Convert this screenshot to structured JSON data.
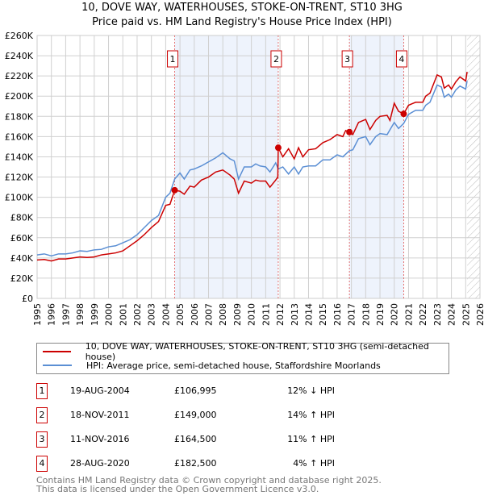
{
  "title": "10, DOVE WAY, WATERHOUSES, STOKE-ON-TRENT, ST10 3HG",
  "subtitle": "Price paid vs. HM Land Registry's House Price Index (HPI)",
  "chart_data": {
    "type": "line",
    "xlim": [
      1995,
      2026
    ],
    "ylim": [
      0,
      260000
    ],
    "x_ticks": [
      "1995",
      "1996",
      "1997",
      "1998",
      "1999",
      "2000",
      "2001",
      "2002",
      "2003",
      "2004",
      "2005",
      "2006",
      "2007",
      "2008",
      "2009",
      "2010",
      "2011",
      "2012",
      "2013",
      "2014",
      "2015",
      "2016",
      "2017",
      "2018",
      "2019",
      "2020",
      "2021",
      "2022",
      "2023",
      "2024",
      "2025",
      "2026"
    ],
    "y_ticks": [
      {
        "v": 0,
        "label": "£0"
      },
      {
        "v": 20000,
        "label": "£20K"
      },
      {
        "v": 40000,
        "label": "£40K"
      },
      {
        "v": 60000,
        "label": "£60K"
      },
      {
        "v": 80000,
        "label": "£80K"
      },
      {
        "v": 100000,
        "label": "£100K"
      },
      {
        "v": 120000,
        "label": "£120K"
      },
      {
        "v": 140000,
        "label": "£140K"
      },
      {
        "v": 160000,
        "label": "£160K"
      },
      {
        "v": 180000,
        "label": "£180K"
      },
      {
        "v": 200000,
        "label": "£200K"
      },
      {
        "v": 220000,
        "label": "£220K"
      },
      {
        "v": 240000,
        "label": "£240K"
      },
      {
        "v": 260000,
        "label": "£260K"
      }
    ],
    "grid": true,
    "shaded_ranges": [
      [
        2004.63,
        2011.88
      ],
      [
        2016.86,
        2020.66
      ]
    ],
    "forecast_hatch_from": 2025.1,
    "series": [
      {
        "name": "10, DOVE WAY, WATERHOUSES, STOKE-ON-TRENT, ST10 3HG (semi-detached house)",
        "color": "#cc0000",
        "points": [
          [
            1995,
            38000
          ],
          [
            1995.5,
            38500
          ],
          [
            1996,
            37000
          ],
          [
            1996.5,
            39000
          ],
          [
            1997,
            39000
          ],
          [
            1997.5,
            40000
          ],
          [
            1998,
            41000
          ],
          [
            1998.5,
            40500
          ],
          [
            1999,
            41000
          ],
          [
            1999.5,
            43000
          ],
          [
            2000,
            44000
          ],
          [
            2000.5,
            45000
          ],
          [
            2001,
            47000
          ],
          [
            2001.5,
            52000
          ],
          [
            2002,
            57000
          ],
          [
            2002.5,
            63000
          ],
          [
            2003,
            70000
          ],
          [
            2003.5,
            76000
          ],
          [
            2004,
            92000
          ],
          [
            2004.3,
            93000
          ],
          [
            2004.63,
            106995
          ],
          [
            2005,
            106000
          ],
          [
            2005.3,
            103000
          ],
          [
            2005.7,
            111000
          ],
          [
            2006,
            110000
          ],
          [
            2006.5,
            117000
          ],
          [
            2007,
            120000
          ],
          [
            2007.5,
            125000
          ],
          [
            2008,
            127000
          ],
          [
            2008.5,
            122000
          ],
          [
            2008.8,
            118000
          ],
          [
            2009.1,
            104000
          ],
          [
            2009.5,
            116000
          ],
          [
            2010,
            114000
          ],
          [
            2010.3,
            117000
          ],
          [
            2010.6,
            116000
          ],
          [
            2011,
            116000
          ],
          [
            2011.3,
            110000
          ],
          [
            2011.7,
            117000
          ],
          [
            2011.85,
            120000
          ],
          [
            2011.88,
            149000
          ],
          [
            2012.2,
            140000
          ],
          [
            2012.6,
            148000
          ],
          [
            2013,
            138000
          ],
          [
            2013.3,
            149000
          ],
          [
            2013.6,
            140000
          ],
          [
            2014,
            147000
          ],
          [
            2014.5,
            148000
          ],
          [
            2015,
            154000
          ],
          [
            2015.5,
            157000
          ],
          [
            2016,
            162000
          ],
          [
            2016.4,
            160000
          ],
          [
            2016.6,
            166000
          ],
          [
            2016.86,
            164500
          ],
          [
            2017.1,
            162000
          ],
          [
            2017.5,
            174000
          ],
          [
            2018,
            177000
          ],
          [
            2018.3,
            167000
          ],
          [
            2018.7,
            176000
          ],
          [
            2019,
            180000
          ],
          [
            2019.5,
            181000
          ],
          [
            2019.7,
            176000
          ],
          [
            2020,
            193000
          ],
          [
            2020.3,
            185000
          ],
          [
            2020.66,
            182500
          ],
          [
            2021,
            191000
          ],
          [
            2021.5,
            194000
          ],
          [
            2022,
            194000
          ],
          [
            2022.2,
            200000
          ],
          [
            2022.5,
            203000
          ],
          [
            2023,
            221000
          ],
          [
            2023.3,
            219000
          ],
          [
            2023.5,
            208000
          ],
          [
            2023.8,
            211000
          ],
          [
            2024,
            207000
          ],
          [
            2024.3,
            214000
          ],
          [
            2024.6,
            219000
          ],
          [
            2025,
            215000
          ],
          [
            2025.1,
            224000
          ]
        ]
      },
      {
        "name": "HPI: Average price, semi-detached house, Staffordshire Moorlands",
        "color": "#5b8fd4",
        "points": [
          [
            1995,
            43000
          ],
          [
            1995.5,
            44000
          ],
          [
            1996,
            42000
          ],
          [
            1996.5,
            44000
          ],
          [
            1997,
            44000
          ],
          [
            1997.5,
            45000
          ],
          [
            1998,
            47000
          ],
          [
            1998.5,
            46500
          ],
          [
            1999,
            48000
          ],
          [
            1999.5,
            48500
          ],
          [
            2000,
            51000
          ],
          [
            2000.5,
            52000
          ],
          [
            2001,
            55000
          ],
          [
            2001.5,
            58000
          ],
          [
            2002,
            63000
          ],
          [
            2002.5,
            70000
          ],
          [
            2003,
            77000
          ],
          [
            2003.5,
            82000
          ],
          [
            2004,
            100000
          ],
          [
            2004.3,
            104000
          ],
          [
            2004.63,
            118000
          ],
          [
            2005,
            124000
          ],
          [
            2005.3,
            118000
          ],
          [
            2005.7,
            127000
          ],
          [
            2006,
            128000
          ],
          [
            2006.5,
            131000
          ],
          [
            2007,
            135000
          ],
          [
            2007.5,
            139000
          ],
          [
            2008,
            144000
          ],
          [
            2008.5,
            138000
          ],
          [
            2008.8,
            136000
          ],
          [
            2009.1,
            118000
          ],
          [
            2009.5,
            130000
          ],
          [
            2010,
            130000
          ],
          [
            2010.3,
            133000
          ],
          [
            2010.6,
            131000
          ],
          [
            2011,
            130000
          ],
          [
            2011.3,
            125000
          ],
          [
            2011.7,
            134000
          ],
          [
            2011.88,
            128000
          ],
          [
            2012.2,
            130000
          ],
          [
            2012.6,
            123000
          ],
          [
            2013,
            130000
          ],
          [
            2013.3,
            123000
          ],
          [
            2013.6,
            130000
          ],
          [
            2014,
            131000
          ],
          [
            2014.5,
            131000
          ],
          [
            2015,
            137000
          ],
          [
            2015.5,
            137000
          ],
          [
            2016,
            142000
          ],
          [
            2016.4,
            140000
          ],
          [
            2016.86,
            146000
          ],
          [
            2017.1,
            147000
          ],
          [
            2017.5,
            158000
          ],
          [
            2018,
            160000
          ],
          [
            2018.3,
            152000
          ],
          [
            2018.7,
            160000
          ],
          [
            2019,
            163000
          ],
          [
            2019.5,
            162000
          ],
          [
            2020,
            174000
          ],
          [
            2020.3,
            168000
          ],
          [
            2020.66,
            173000
          ],
          [
            2021,
            182000
          ],
          [
            2021.5,
            186000
          ],
          [
            2022,
            186000
          ],
          [
            2022.2,
            191000
          ],
          [
            2022.5,
            194000
          ],
          [
            2023,
            211000
          ],
          [
            2023.3,
            209000
          ],
          [
            2023.5,
            199000
          ],
          [
            2023.8,
            202000
          ],
          [
            2024,
            199000
          ],
          [
            2024.3,
            206000
          ],
          [
            2024.6,
            210000
          ],
          [
            2025,
            207000
          ],
          [
            2025.1,
            215000
          ]
        ]
      }
    ],
    "sales": [
      {
        "n": "1",
        "x": 2004.63,
        "y": 106995
      },
      {
        "n": "2",
        "x": 2011.88,
        "y": 149000
      },
      {
        "n": "3",
        "x": 2016.86,
        "y": 164500
      },
      {
        "n": "4",
        "x": 2020.66,
        "y": 182500
      }
    ]
  },
  "legend": {
    "property": "10, DOVE WAY, WATERHOUSES, STOKE-ON-TRENT, ST10 3HG (semi-detached house)",
    "hpi": "HPI: Average price, semi-detached house, Staffordshire Moorlands"
  },
  "transactions": [
    {
      "n": "1",
      "date": "19-AUG-2004",
      "price": "£106,995",
      "hpi": "12% ↓ HPI"
    },
    {
      "n": "2",
      "date": "18-NOV-2011",
      "price": "£149,000",
      "hpi": "14% ↑ HPI"
    },
    {
      "n": "3",
      "date": "11-NOV-2016",
      "price": "£164,500",
      "hpi": "11% ↑ HPI"
    },
    {
      "n": "4",
      "date": "28-AUG-2020",
      "price": "£182,500",
      "hpi": "4% ↑ HPI"
    }
  ],
  "footer": {
    "line1": "Contains HM Land Registry data © Crown copyright and database right 2025.",
    "line2": "This data is licensed under the Open Government Licence v3.0."
  }
}
